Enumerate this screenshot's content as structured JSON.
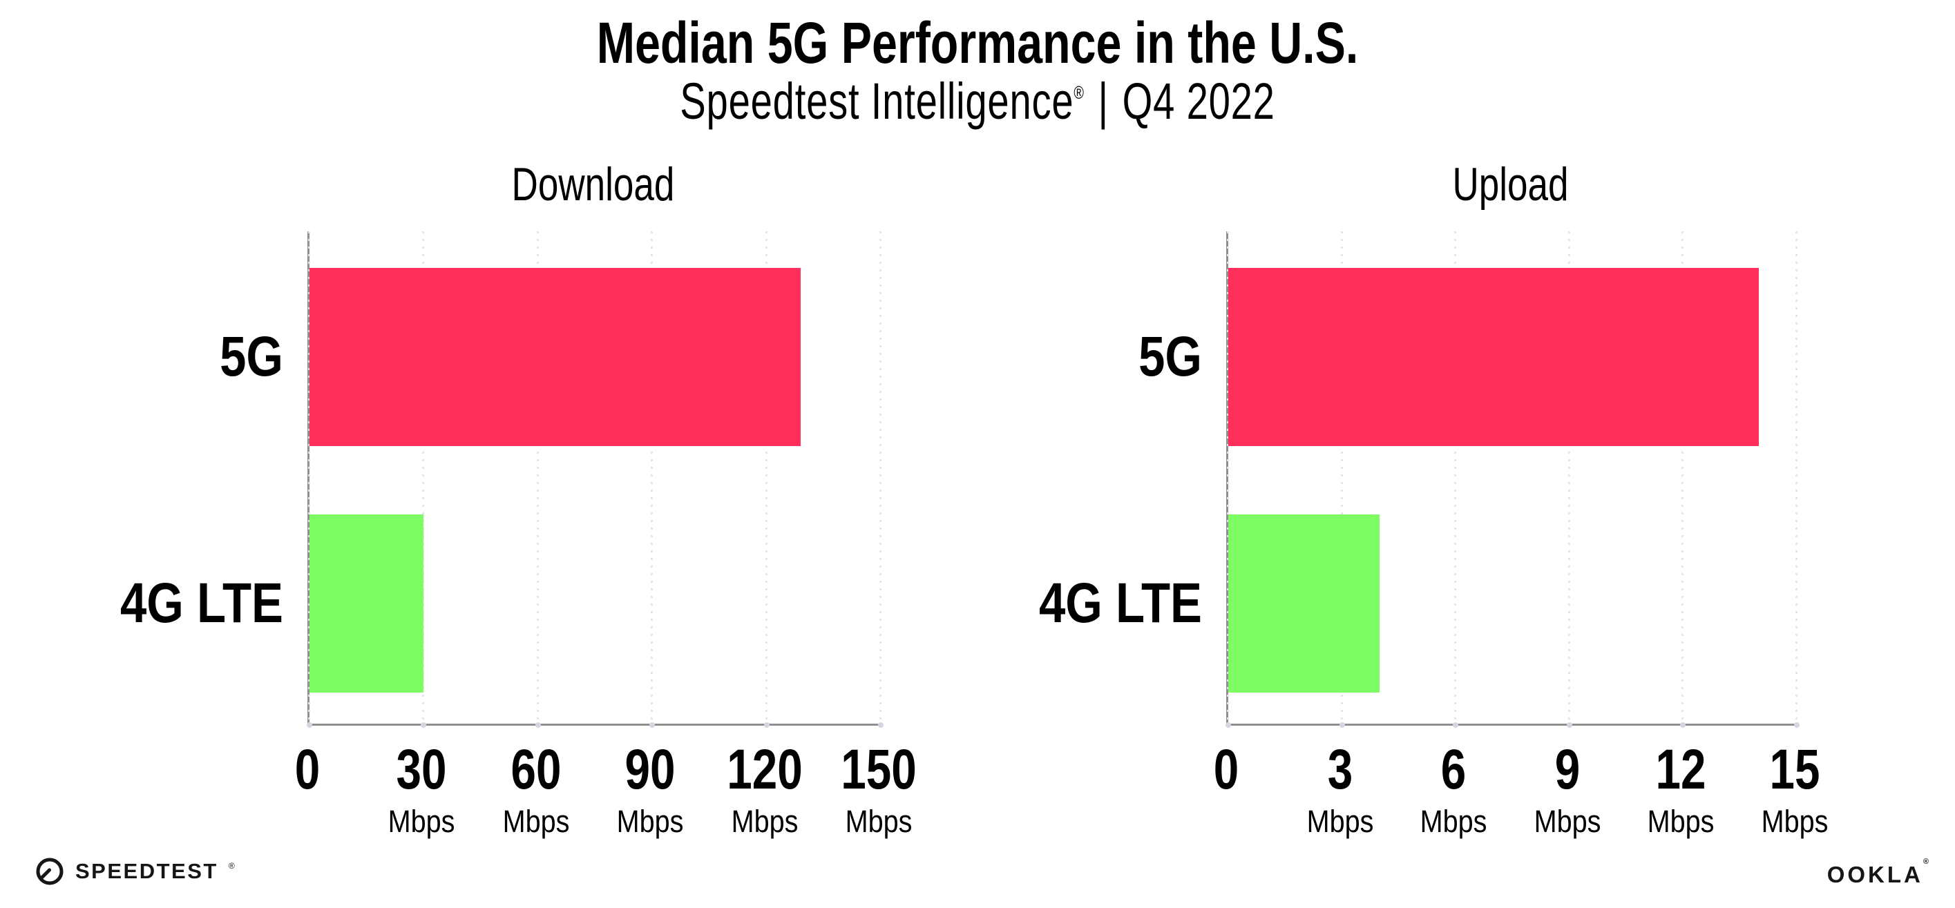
{
  "header": {
    "title": "Median 5G Performance in the U.S.",
    "brand": "Speedtest Intelligence",
    "brand_mark": "®",
    "divider": "|",
    "period": "Q4 2022"
  },
  "chart_data": [
    {
      "type": "bar",
      "orientation": "horizontal",
      "title": "Download",
      "categories": [
        "5G",
        "4G LTE"
      ],
      "values": [
        129,
        30
      ],
      "unit": "Mbps",
      "xlim": [
        0,
        150
      ],
      "ticks": [
        0,
        30,
        60,
        90,
        120,
        150
      ],
      "colors": [
        "#FF2E5B",
        "#7DFC63"
      ],
      "grid": "dotted-vertical",
      "legend": "none"
    },
    {
      "type": "bar",
      "orientation": "horizontal",
      "title": "Upload",
      "categories": [
        "5G",
        "4G LTE"
      ],
      "values": [
        14,
        4
      ],
      "unit": "Mbps",
      "xlim": [
        0,
        15
      ],
      "ticks": [
        0,
        3,
        6,
        9,
        12,
        15
      ],
      "colors": [
        "#FF2E5B",
        "#7DFC63"
      ],
      "grid": "dotted-vertical",
      "legend": "none"
    }
  ],
  "footer": {
    "speedtest": "SPEEDTEST",
    "speedtest_mark": "®",
    "ookla": "OOKLA",
    "ookla_mark": "®"
  }
}
